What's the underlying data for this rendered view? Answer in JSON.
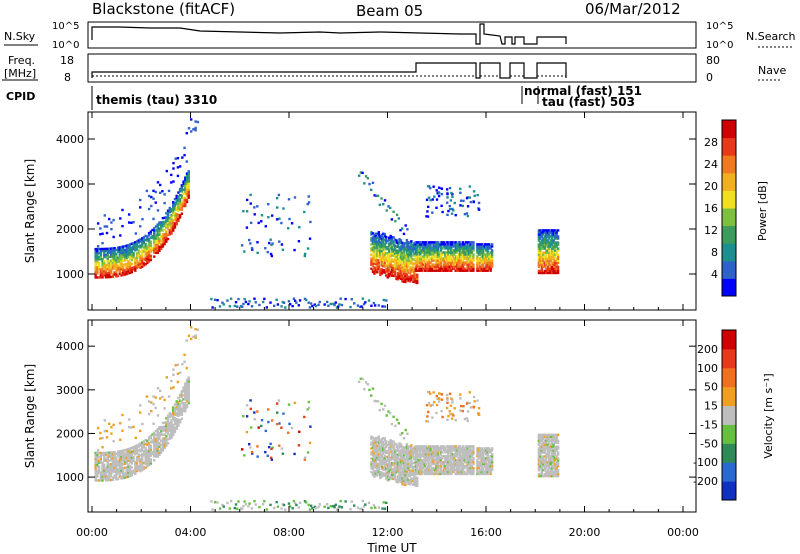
{
  "header": {
    "station": "Blackstone (fitACF)",
    "beam": "Beam 05",
    "date": "06/Mar/2012"
  },
  "panels": {
    "nsky": {
      "left_label": "N.Sky",
      "left_ticks": [
        "10^5",
        "10^0"
      ],
      "right_ticks": [
        "10^5",
        "10^0"
      ],
      "right_label": "N.Search"
    },
    "freq": {
      "left_label_line1": "Freq.",
      "left_label_line2": "[MHz]",
      "left_ticks": [
        "18",
        "8"
      ],
      "right_ticks": [
        "80",
        "0"
      ],
      "right_label": "Nave"
    },
    "cpid": {
      "label": "CPID",
      "entries": [
        "themis (tau) 3310",
        "normal (fast) 151",
        "tau (fast) 503"
      ]
    }
  },
  "chart_data": [
    {
      "type": "heatmap",
      "name": "power",
      "ylabel": "Slant Range [km]",
      "yticks": [
        1000,
        2000,
        3000,
        4000
      ],
      "ylim": [
        200,
        4600
      ],
      "xticks": [
        "00:00",
        "04:00",
        "08:00",
        "12:00",
        "16:00",
        "20:00",
        "00:00"
      ],
      "xlim_hours": [
        0,
        24
      ],
      "colorbar": {
        "label": "Power [dB]",
        "ticks": [
          "28",
          "24",
          "20",
          "16",
          "12",
          "8",
          "4"
        ],
        "colors": [
          "#0000ff",
          "#2d63c9",
          "#1e8f8f",
          "#3c9c5e",
          "#7fbf3f",
          "#f0e020",
          "#f0b020",
          "#f07a20",
          "#e83a1a",
          "#d00000"
        ]
      }
    },
    {
      "type": "heatmap",
      "name": "velocity",
      "ylabel": "Slant Range [km]",
      "yticks": [
        1000,
        2000,
        3000,
        4000
      ],
      "ylim": [
        200,
        4600
      ],
      "xticks": [
        "00:00",
        "04:00",
        "08:00",
        "12:00",
        "16:00",
        "20:00",
        "00:00"
      ],
      "xlim_hours": [
        0,
        24
      ],
      "xlabel": "Time UT",
      "colorbar": {
        "label": "Velocity [m s⁻¹]",
        "ticks": [
          "200",
          "100",
          "50",
          "15",
          "-15",
          "-50",
          "-100",
          "-200"
        ],
        "colors": [
          "#1030c0",
          "#2a6ad0",
          "#2e8b57",
          "#66c040",
          "#bebebe",
          "#f0a020",
          "#f07020",
          "#e83a1a",
          "#d00000"
        ]
      }
    }
  ]
}
